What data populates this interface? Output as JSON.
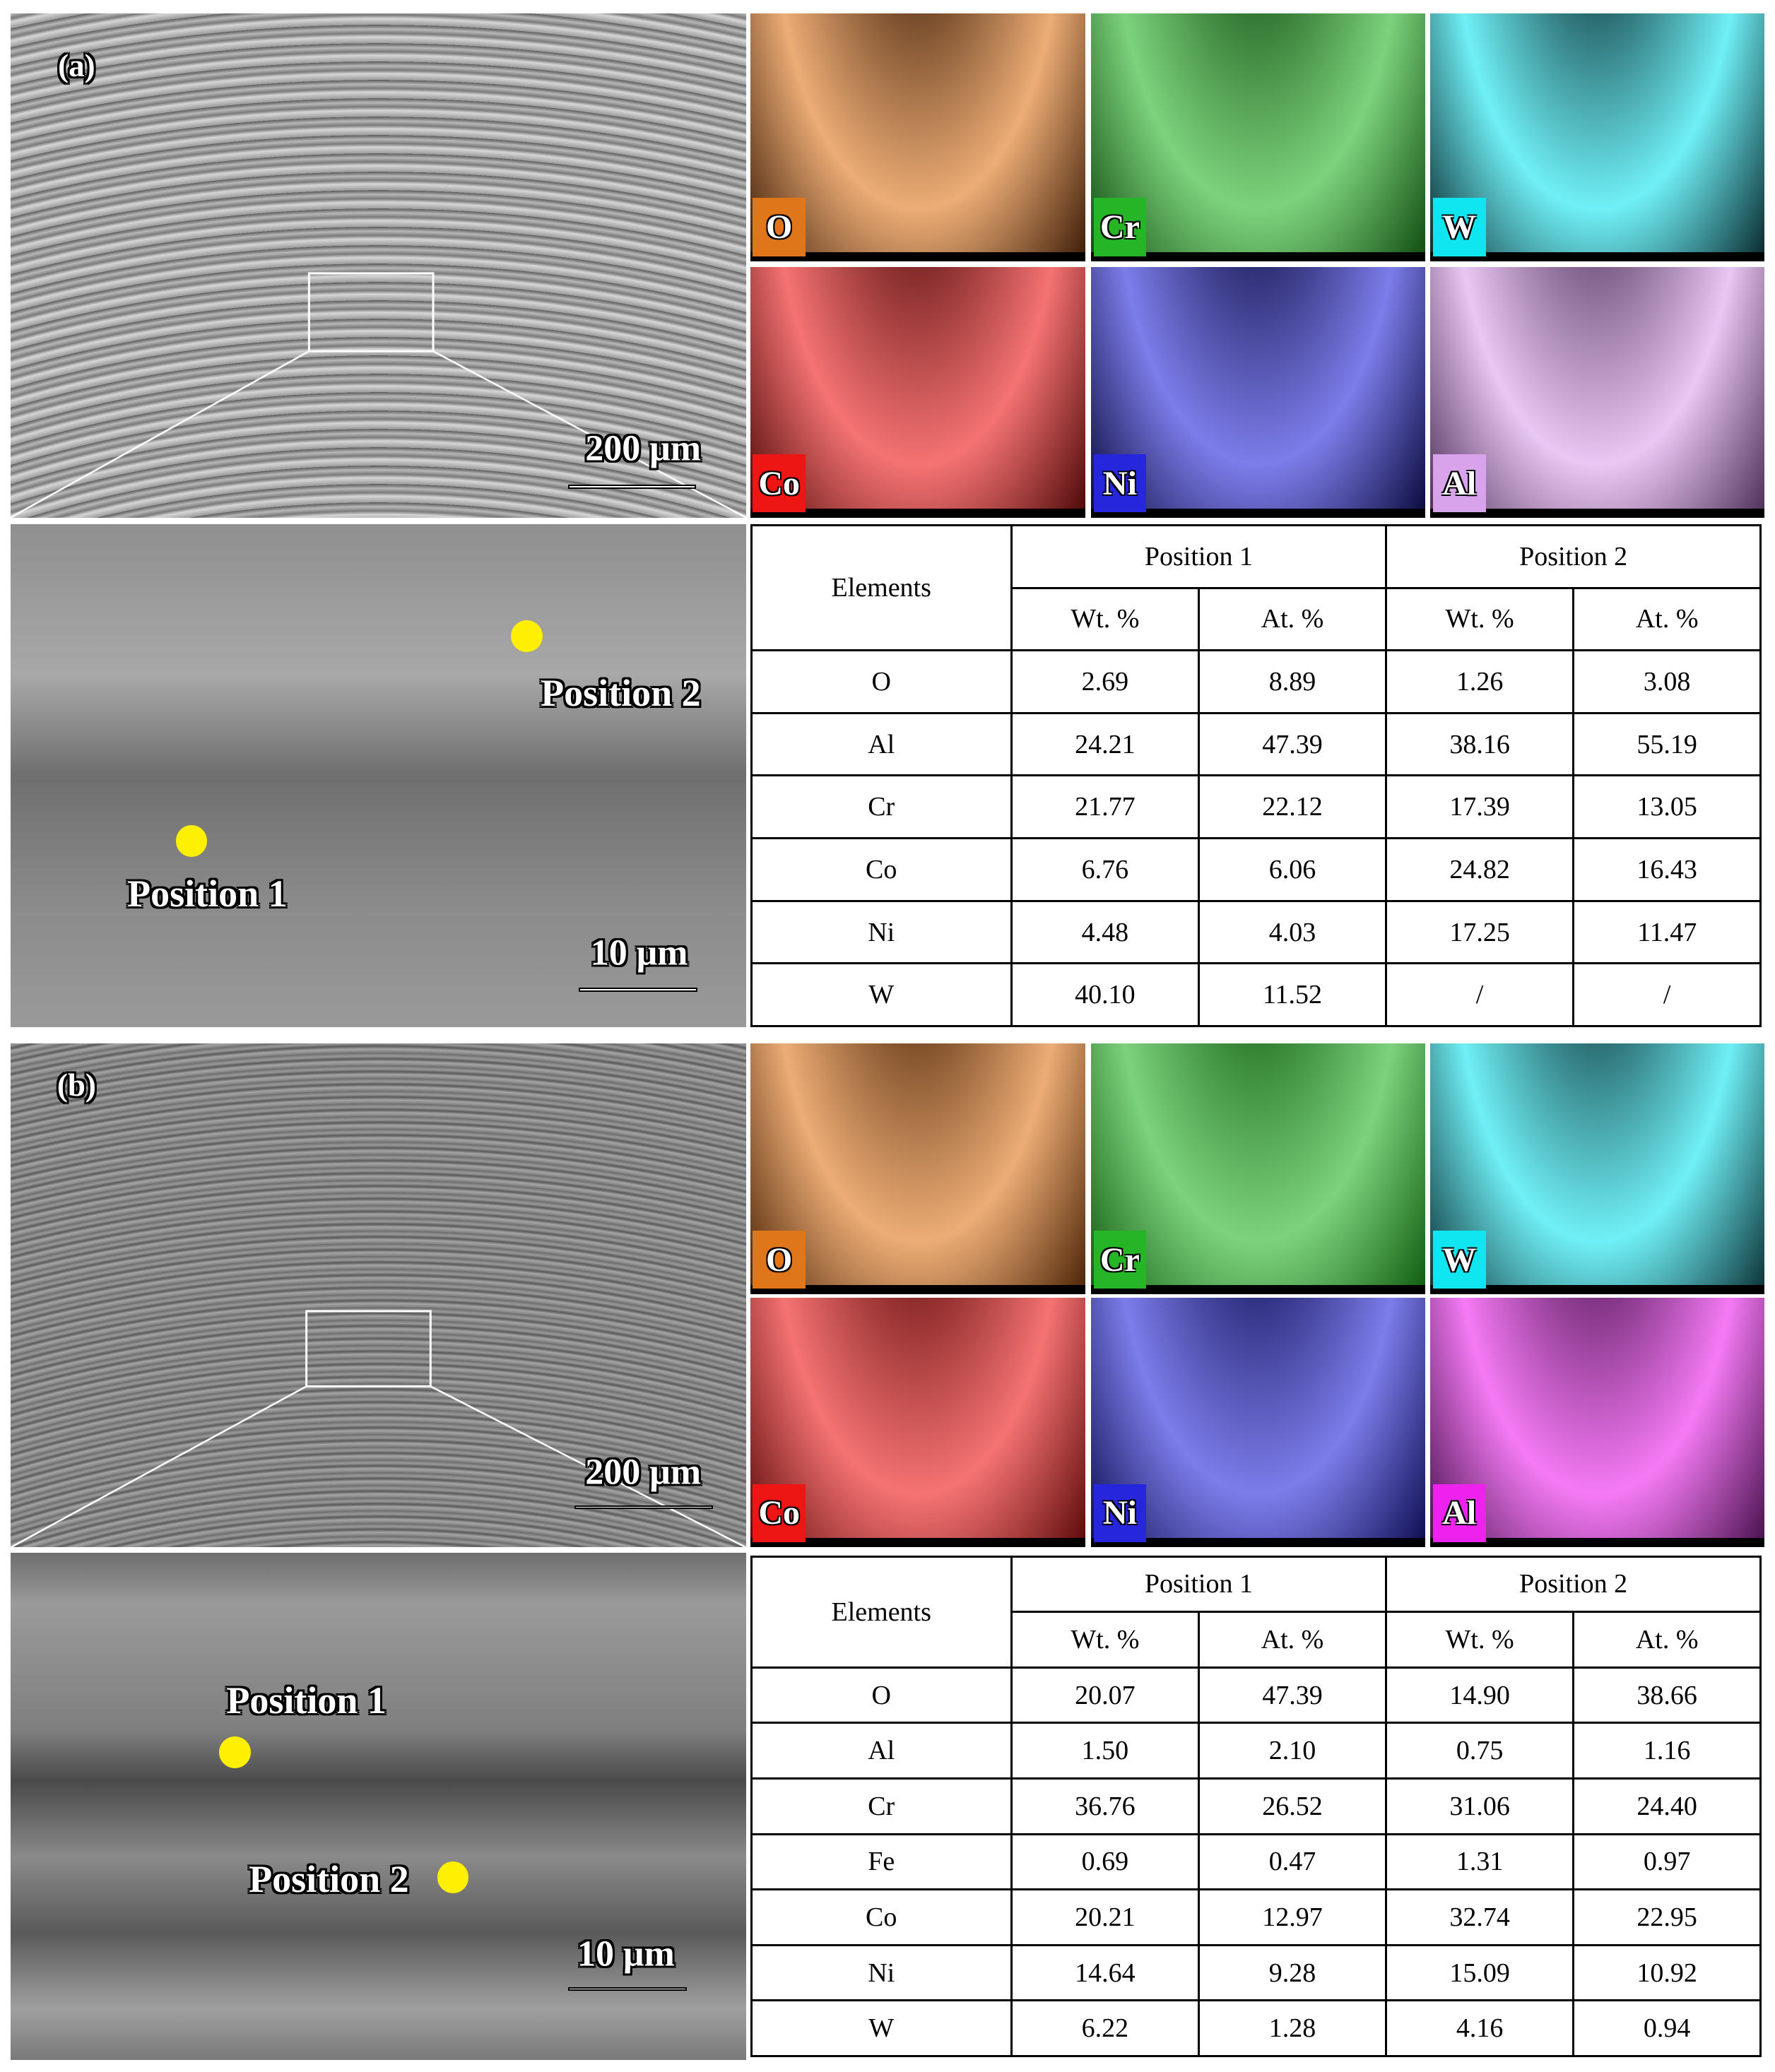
{
  "panels": [
    {
      "label": "(a)",
      "overview_scale_bar": "200 μm",
      "maps": [
        "O",
        "Cr",
        "W",
        "Co",
        "Ni",
        "Al"
      ],
      "zoom_scale_bar": "10 μm",
      "positions": [
        "Position 1",
        "Position 2"
      ],
      "table": {
        "header": [
          "Elements",
          "Position 1",
          "Position 2"
        ],
        "subheader": [
          "Wt. %",
          "At. %",
          "Wt. %",
          "At. %"
        ],
        "rows": [
          [
            "O",
            "2.69",
            "8.89",
            "1.26",
            "3.08"
          ],
          [
            "Al",
            "24.21",
            "47.39",
            "38.16",
            "55.19"
          ],
          [
            "Cr",
            "21.77",
            "22.12",
            "17.39",
            "13.05"
          ],
          [
            "Co",
            "6.76",
            "6.06",
            "24.82",
            "16.43"
          ],
          [
            "Ni",
            "4.48",
            "4.03",
            "17.25",
            "11.47"
          ],
          [
            "W",
            "40.10",
            "11.52",
            "/",
            "/"
          ]
        ]
      }
    },
    {
      "label": "(b)",
      "overview_scale_bar": "200 μm",
      "maps": [
        "O",
        "Cr",
        "W",
        "Co",
        "Ni",
        "Al"
      ],
      "zoom_scale_bar": "10 μm",
      "positions": [
        "Position 1",
        "Position 2"
      ],
      "table": {
        "header": [
          "Elements",
          "Position 1",
          "Position 2"
        ],
        "subheader": [
          "Wt. %",
          "At. %",
          "Wt. %",
          "At. %"
        ],
        "rows": [
          [
            "O",
            "20.07",
            "47.39",
            "14.90",
            "38.66"
          ],
          [
            "Al",
            "1.50",
            "2.10",
            "0.75",
            "1.16"
          ],
          [
            "Cr",
            "36.76",
            "26.52",
            "31.06",
            "24.40"
          ],
          [
            "Fe",
            "0.69",
            "0.47",
            "1.31",
            "0.97"
          ],
          [
            "Co",
            "20.21",
            "12.97",
            "32.74",
            "22.95"
          ],
          [
            "Ni",
            "14.64",
            "9.28",
            "15.09",
            "10.92"
          ],
          [
            "W",
            "6.22",
            "1.28",
            "4.16",
            "0.94"
          ]
        ]
      }
    }
  ]
}
